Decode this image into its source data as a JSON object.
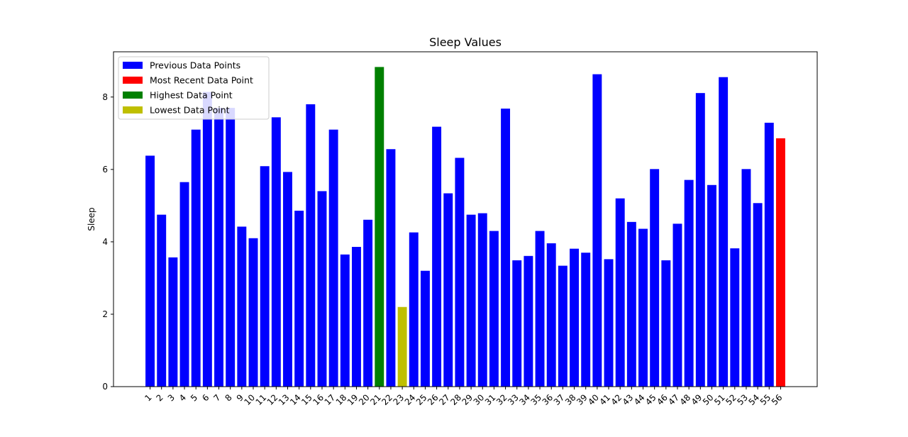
{
  "chart_data": {
    "type": "bar",
    "title": "Sleep Values",
    "xlabel": "",
    "ylabel": "Sleep",
    "ylim": [
      0,
      9.25
    ],
    "yticks": [
      0,
      2,
      4,
      6,
      8
    ],
    "grid": false,
    "legend_position": "top-left",
    "categories": [
      "1",
      "2",
      "3",
      "4",
      "5",
      "6",
      "7",
      "8",
      "9",
      "10",
      "11",
      "12",
      "13",
      "14",
      "15",
      "16",
      "17",
      "18",
      "19",
      "20",
      "21",
      "22",
      "23",
      "24",
      "25",
      "26",
      "27",
      "28",
      "29",
      "30",
      "31",
      "32",
      "33",
      "34",
      "35",
      "36",
      "37",
      "38",
      "39",
      "40",
      "41",
      "42",
      "43",
      "44",
      "45",
      "46",
      "47",
      "48",
      "49",
      "50",
      "51",
      "52",
      "53",
      "54",
      "55",
      "56"
    ],
    "values": [
      6.38,
      4.75,
      3.57,
      5.65,
      7.1,
      8.14,
      7.7,
      7.7,
      4.42,
      4.1,
      6.09,
      7.44,
      5.93,
      4.86,
      7.8,
      5.4,
      7.1,
      3.65,
      3.86,
      4.61,
      8.83,
      6.56,
      2.2,
      4.26,
      3.2,
      7.18,
      5.34,
      6.32,
      4.75,
      4.79,
      4.3,
      7.68,
      3.49,
      3.61,
      4.3,
      3.96,
      3.34,
      3.81,
      3.7,
      8.63,
      3.52,
      5.2,
      4.55,
      4.36,
      6.01,
      3.49,
      4.5,
      5.71,
      8.11,
      5.57,
      8.55,
      3.82,
      6.01,
      5.07,
      7.29,
      6.86
    ],
    "bar_roles": [
      "previous",
      "previous",
      "previous",
      "previous",
      "previous",
      "previous",
      "previous",
      "previous",
      "previous",
      "previous",
      "previous",
      "previous",
      "previous",
      "previous",
      "previous",
      "previous",
      "previous",
      "previous",
      "previous",
      "previous",
      "highest",
      "previous",
      "lowest",
      "previous",
      "previous",
      "previous",
      "previous",
      "previous",
      "previous",
      "previous",
      "previous",
      "previous",
      "previous",
      "previous",
      "previous",
      "previous",
      "previous",
      "previous",
      "previous",
      "previous",
      "previous",
      "previous",
      "previous",
      "previous",
      "previous",
      "previous",
      "previous",
      "previous",
      "previous",
      "previous",
      "previous",
      "previous",
      "previous",
      "previous",
      "previous",
      "recent"
    ],
    "colors": {
      "previous": "#0000ff",
      "recent": "#ff0000",
      "highest": "#008000",
      "lowest": "#bfbf00"
    },
    "legend": [
      {
        "role": "previous",
        "label": "Previous Data Points"
      },
      {
        "role": "recent",
        "label": "Most Recent Data Point"
      },
      {
        "role": "highest",
        "label": "Highest Data Point"
      },
      {
        "role": "lowest",
        "label": "Lowest Data Point"
      }
    ]
  }
}
